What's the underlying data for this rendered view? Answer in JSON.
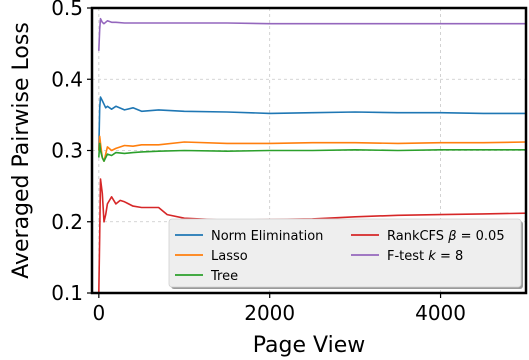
{
  "chart_data": {
    "type": "line",
    "xlabel": "Page View",
    "ylabel": "Averaged Pairwise Loss",
    "xlim": [
      -80,
      5000
    ],
    "ylim": [
      0.1,
      0.5
    ],
    "xticks": [
      0,
      2000,
      4000
    ],
    "xtick_labels": [
      "0",
      "2000",
      "4000"
    ],
    "yticks": [
      0.1,
      0.2,
      0.3,
      0.4,
      0.5
    ],
    "ytick_labels": [
      "0.1",
      "0.2",
      "0.3",
      "0.4",
      "0.5"
    ],
    "grid": true,
    "legend_position": "lower-right",
    "series": [
      {
        "name": "Norm Elimination",
        "color": "#1f77b4",
        "x": [
          0,
          10,
          20,
          40,
          60,
          80,
          100,
          150,
          200,
          300,
          400,
          500,
          700,
          1000,
          1500,
          2000,
          2500,
          3000,
          3500,
          4000,
          4500,
          5000
        ],
        "y": [
          0.3,
          0.36,
          0.375,
          0.37,
          0.365,
          0.36,
          0.362,
          0.358,
          0.362,
          0.357,
          0.36,
          0.355,
          0.357,
          0.355,
          0.354,
          0.352,
          0.353,
          0.354,
          0.353,
          0.353,
          0.352,
          0.352
        ]
      },
      {
        "name": "Lasso",
        "color": "#ff7f0e",
        "x": [
          0,
          10,
          20,
          40,
          60,
          80,
          100,
          150,
          200,
          300,
          400,
          500,
          700,
          1000,
          1500,
          2000,
          2500,
          3000,
          3500,
          4000,
          4500,
          5000
        ],
        "y": [
          0.3,
          0.32,
          0.31,
          0.29,
          0.285,
          0.295,
          0.305,
          0.3,
          0.303,
          0.307,
          0.306,
          0.308,
          0.308,
          0.312,
          0.31,
          0.31,
          0.311,
          0.311,
          0.31,
          0.311,
          0.311,
          0.312
        ]
      },
      {
        "name": "Tree",
        "color": "#2ca02c",
        "x": [
          0,
          10,
          20,
          40,
          60,
          80,
          100,
          150,
          200,
          300,
          400,
          500,
          700,
          1000,
          1500,
          2000,
          2500,
          3000,
          3500,
          4000,
          4500,
          5000
        ],
        "y": [
          0.29,
          0.31,
          0.3,
          0.29,
          0.285,
          0.29,
          0.295,
          0.293,
          0.297,
          0.296,
          0.297,
          0.298,
          0.299,
          0.3,
          0.299,
          0.3,
          0.3,
          0.301,
          0.3,
          0.301,
          0.301,
          0.301
        ]
      },
      {
        "name": "RankCFS β = 0.05",
        "color": "#d62728",
        "x": [
          0,
          10,
          20,
          40,
          60,
          80,
          100,
          150,
          200,
          250,
          300,
          400,
          500,
          700,
          800,
          1000,
          1500,
          2000,
          2500,
          3000,
          3500,
          4000,
          4500,
          5000
        ],
        "y": [
          0.1,
          0.18,
          0.26,
          0.24,
          0.2,
          0.21,
          0.225,
          0.235,
          0.225,
          0.23,
          0.228,
          0.222,
          0.22,
          0.22,
          0.21,
          0.205,
          0.202,
          0.203,
          0.204,
          0.207,
          0.209,
          0.21,
          0.211,
          0.212
        ]
      },
      {
        "name": "F-test k = 8",
        "color": "#9467bd",
        "x": [
          0,
          10,
          20,
          40,
          60,
          100,
          150,
          200,
          300,
          400,
          500,
          700,
          1000,
          1500,
          2000,
          2500,
          3000,
          3500,
          4000,
          4500,
          5000
        ],
        "y": [
          0.44,
          0.47,
          0.485,
          0.48,
          0.478,
          0.482,
          0.48,
          0.48,
          0.479,
          0.479,
          0.479,
          0.479,
          0.479,
          0.479,
          0.478,
          0.478,
          0.478,
          0.478,
          0.478,
          0.478,
          0.478
        ]
      }
    ],
    "legend": {
      "items": [
        {
          "label": "Norm Elimination",
          "color": "#1f77b4"
        },
        {
          "label": "Lasso",
          "color": "#ff7f0e"
        },
        {
          "label": "Tree",
          "color": "#2ca02c"
        },
        {
          "label_main": "RankCFS ",
          "label_var": "β",
          "label_rest": " = 0.05",
          "color": "#d62728"
        },
        {
          "label_main": "F-test ",
          "label_var": "k",
          "label_rest": " = 8",
          "color": "#9467bd"
        }
      ]
    }
  }
}
